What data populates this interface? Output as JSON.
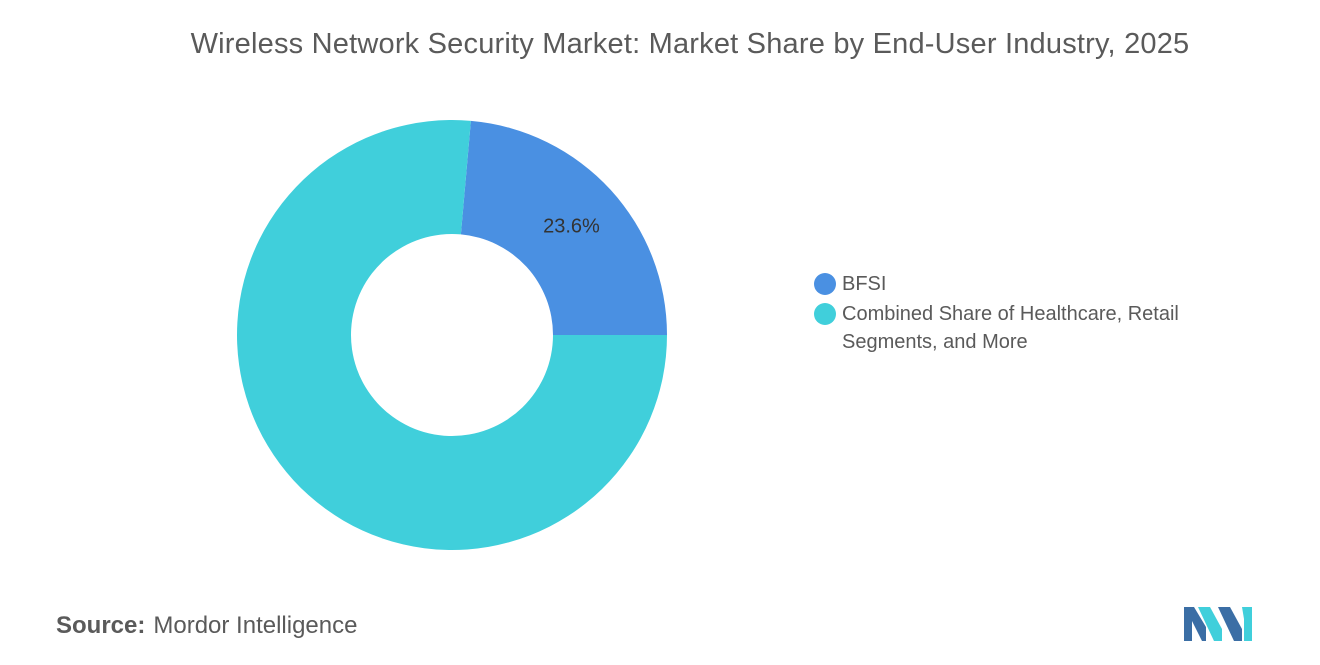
{
  "chart_data": {
    "type": "pie",
    "title": "Wireless Network Security Market: Market Share by End-User Industry, 2025",
    "donut": true,
    "slices": [
      {
        "label": "BFSI",
        "value": 23.6,
        "value_label": "23.6%",
        "color": "#4a90e2"
      },
      {
        "label": "Combined Share of Healthcare, Retail Segments, and More",
        "value": 76.4,
        "value_label": "",
        "color": "#40cfdb"
      }
    ],
    "legend_position": "right"
  },
  "source": {
    "label": "Source:",
    "text": "Mordor Intelligence"
  },
  "logo": {
    "icon": "mordor-intelligence-logo",
    "colors": [
      "#3b6ea5",
      "#40cfdb"
    ]
  }
}
